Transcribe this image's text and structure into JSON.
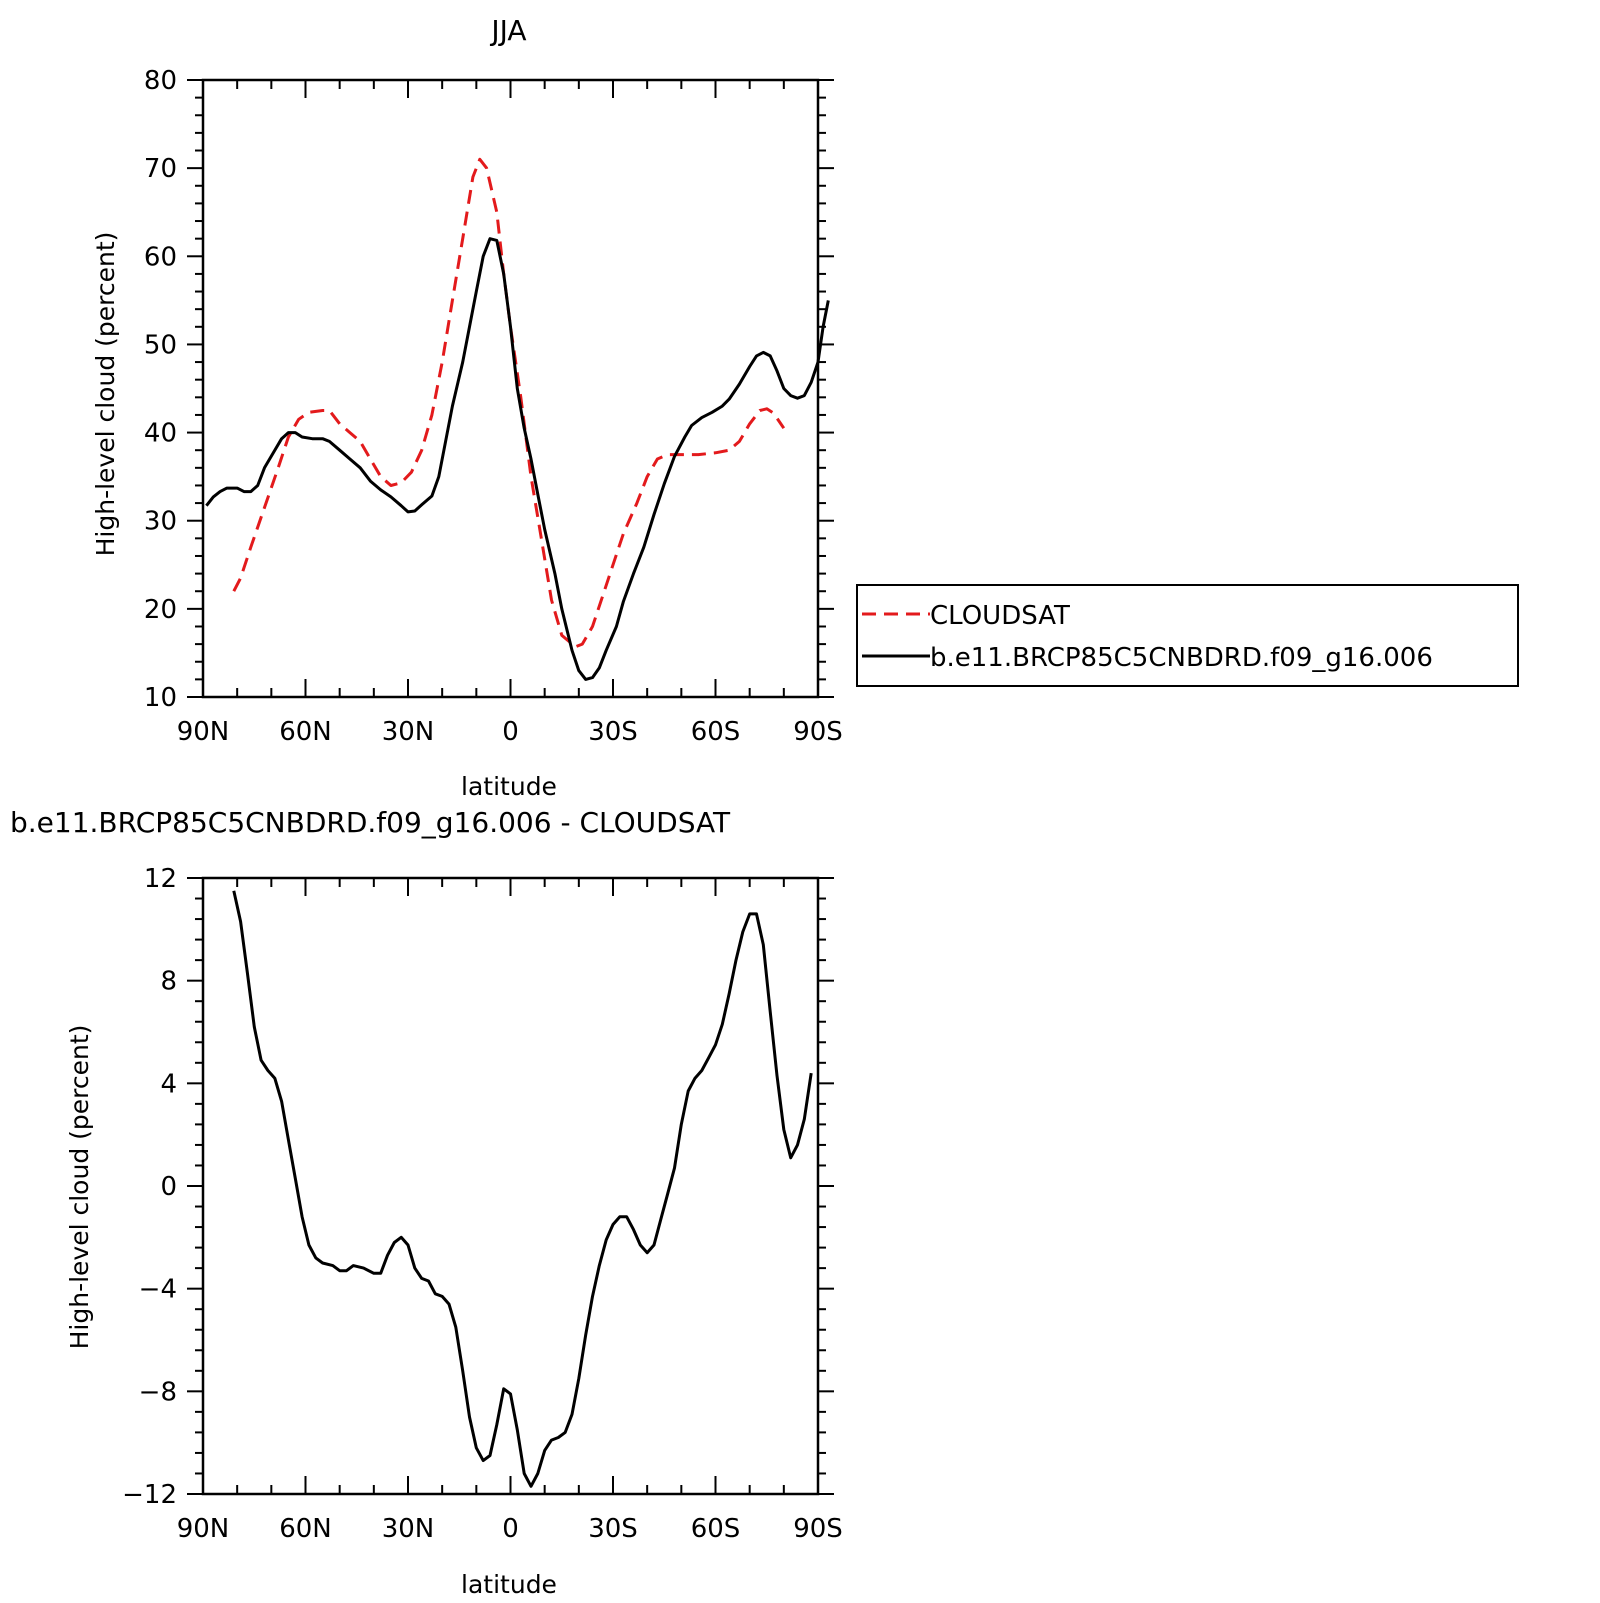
{
  "chart_data": [
    {
      "type": "line",
      "title": "JJA",
      "xlabel": "latitude",
      "ylabel": "High-level cloud (percent)",
      "xlim": [
        90,
        -90
      ],
      "ylim": [
        10,
        80
      ],
      "x_tick_values": [
        90,
        60,
        30,
        0,
        -30,
        -60,
        -90
      ],
      "x_tick_labels": [
        "90N",
        "60N",
        "30N",
        "0",
        "30S",
        "60S",
        "90S"
      ],
      "y_tick_values": [
        10,
        20,
        30,
        40,
        50,
        60,
        70,
        80
      ],
      "y_tick_labels": [
        "10",
        "20",
        "30",
        "40",
        "50",
        "60",
        "70",
        "80"
      ],
      "legend_position": "right",
      "series": [
        {
          "name": "CLOUDSAT",
          "color": "#e31a1c",
          "dash": "dashed",
          "points": [
            [
              81,
              22
            ],
            [
              79,
              23.5
            ],
            [
              76,
              27
            ],
            [
              72,
              31.5
            ],
            [
              68,
              36
            ],
            [
              65,
              39.5
            ],
            [
              62,
              41.5
            ],
            [
              59,
              42.3
            ],
            [
              55,
              42.5
            ],
            [
              53,
              42.5
            ],
            [
              50,
              41
            ],
            [
              47,
              40
            ],
            [
              44,
              39
            ],
            [
              41,
              37
            ],
            [
              38,
              35
            ],
            [
              35,
              34
            ],
            [
              32,
              34.3
            ],
            [
              29,
              35.5
            ],
            [
              26,
              38
            ],
            [
              23,
              42
            ],
            [
              20,
              48
            ],
            [
              17,
              55
            ],
            [
              14,
              62
            ],
            [
              11,
              69
            ],
            [
              9,
              71
            ],
            [
              7,
              70
            ],
            [
              4,
              65
            ],
            [
              2,
              58
            ],
            [
              0,
              52
            ],
            [
              -3,
              44
            ],
            [
              -6,
              35
            ],
            [
              -9,
              28
            ],
            [
              -12,
              21
            ],
            [
              -15,
              17
            ],
            [
              -19,
              15.7
            ],
            [
              -21,
              16
            ],
            [
              -24,
              18
            ],
            [
              -27,
              21.5
            ],
            [
              -30,
              25
            ],
            [
              -33,
              28.5
            ],
            [
              -37,
              32
            ],
            [
              -40,
              35
            ],
            [
              -43,
              37
            ],
            [
              -46,
              37.5
            ],
            [
              -50,
              37.5
            ],
            [
              -55,
              37.5
            ],
            [
              -60,
              37.7
            ],
            [
              -64,
              38
            ],
            [
              -67,
              39
            ],
            [
              -70,
              41
            ],
            [
              -73,
              42.5
            ],
            [
              -75,
              42.7
            ],
            [
              -77,
              42.2
            ],
            [
              -80,
              40.5
            ]
          ]
        },
        {
          "name": "b.e11.BRCP85C5CNBDRD.f09_g16.006",
          "color": "#000000",
          "dash": "solid",
          "points": [
            [
              89,
              31.7
            ],
            [
              87,
              32.7
            ],
            [
              85,
              33.3
            ],
            [
              83,
              33.7
            ],
            [
              80,
              33.7
            ],
            [
              78,
              33.3
            ],
            [
              76,
              33.3
            ],
            [
              74,
              34
            ],
            [
              72,
              36
            ],
            [
              69,
              38
            ],
            [
              67,
              39.3
            ],
            [
              65,
              40
            ],
            [
              63,
              40
            ],
            [
              61,
              39.5
            ],
            [
              58,
              39.3
            ],
            [
              55,
              39.3
            ],
            [
              53,
              39
            ],
            [
              50,
              38
            ],
            [
              47,
              37
            ],
            [
              44,
              36
            ],
            [
              41,
              34.5
            ],
            [
              38,
              33.5
            ],
            [
              35,
              32.7
            ],
            [
              32,
              31.7
            ],
            [
              30,
              31
            ],
            [
              28,
              31.1
            ],
            [
              26,
              31.8
            ],
            [
              23,
              32.8
            ],
            [
              21,
              35
            ],
            [
              19,
              39
            ],
            [
              17,
              43
            ],
            [
              14,
              48
            ],
            [
              12,
              52
            ],
            [
              10,
              56
            ],
            [
              8,
              60
            ],
            [
              6,
              62
            ],
            [
              4,
              61.8
            ],
            [
              2,
              58
            ],
            [
              0,
              52
            ],
            [
              -2,
              45
            ],
            [
              -4,
              40.5
            ],
            [
              -6,
              37
            ],
            [
              -8,
              33
            ],
            [
              -10,
              29
            ],
            [
              -13,
              24
            ],
            [
              -15,
              20
            ],
            [
              -18,
              15.3
            ],
            [
              -20,
              13
            ],
            [
              -22,
              12
            ],
            [
              -24,
              12.2
            ],
            [
              -26,
              13.3
            ],
            [
              -28,
              15.3
            ],
            [
              -31,
              18
            ],
            [
              -33,
              20.8
            ],
            [
              -36,
              24
            ],
            [
              -39,
              27
            ],
            [
              -42,
              30.7
            ],
            [
              -45,
              34.2
            ],
            [
              -48,
              37.3
            ],
            [
              -51,
              39.5
            ],
            [
              -53,
              40.8
            ],
            [
              -56,
              41.7
            ],
            [
              -59,
              42.3
            ],
            [
              -62,
              43
            ],
            [
              -64,
              43.8
            ],
            [
              -67,
              45.5
            ],
            [
              -70,
              47.5
            ],
            [
              -72,
              48.7
            ],
            [
              -74,
              49.1
            ],
            [
              -76,
              48.7
            ],
            [
              -78,
              47
            ],
            [
              -80,
              45
            ],
            [
              -82,
              44.2
            ],
            [
              -84,
              43.9
            ],
            [
              -86,
              44.2
            ],
            [
              -88,
              45.7
            ],
            [
              -90,
              48
            ],
            [
              -91.5,
              52
            ],
            [
              -93,
              55
            ]
          ]
        }
      ]
    },
    {
      "type": "line",
      "title": "b.e11.BRCP85C5CNBDRD.f09_g16.006 - CLOUDSAT",
      "xlabel": "latitude",
      "ylabel": "High-level cloud (percent)",
      "xlim": [
        90,
        -90
      ],
      "ylim": [
        -12,
        12
      ],
      "x_tick_values": [
        90,
        60,
        30,
        0,
        -30,
        -60,
        -90
      ],
      "x_tick_labels": [
        "90N",
        "60N",
        "30N",
        "0",
        "30S",
        "60S",
        "90S"
      ],
      "y_tick_values": [
        -12,
        -8,
        -4,
        0,
        4,
        8,
        12
      ],
      "y_tick_labels": [
        "−12",
        "−8",
        "−4",
        "0",
        "4",
        "8",
        "12"
      ],
      "series": [
        {
          "color": "#000000",
          "dash": "solid",
          "points": [
            [
              81,
              11.5
            ],
            [
              79,
              10.3
            ],
            [
              77,
              8.3
            ],
            [
              75,
              6.2
            ],
            [
              73,
              4.9
            ],
            [
              71,
              4.5
            ],
            [
              69,
              4.2
            ],
            [
              67,
              3.3
            ],
            [
              65,
              1.8
            ],
            [
              63,
              0.3
            ],
            [
              61,
              -1.2
            ],
            [
              59,
              -2.3
            ],
            [
              57,
              -2.8
            ],
            [
              55,
              -3
            ],
            [
              52,
              -3.1
            ],
            [
              50,
              -3.3
            ],
            [
              48,
              -3.3
            ],
            [
              46,
              -3.1
            ],
            [
              43,
              -3.2
            ],
            [
              40,
              -3.4
            ],
            [
              38,
              -3.4
            ],
            [
              36,
              -2.7
            ],
            [
              34,
              -2.2
            ],
            [
              32,
              -2.0
            ],
            [
              30,
              -2.3
            ],
            [
              28,
              -3.2
            ],
            [
              26,
              -3.6
            ],
            [
              24,
              -3.7
            ],
            [
              22,
              -4.2
            ],
            [
              20,
              -4.3
            ],
            [
              18,
              -4.6
            ],
            [
              16,
              -5.5
            ],
            [
              14,
              -7.2
            ],
            [
              12,
              -9
            ],
            [
              10,
              -10.2
            ],
            [
              8,
              -10.7
            ],
            [
              6,
              -10.5
            ],
            [
              4,
              -9.3
            ],
            [
              2,
              -7.9
            ],
            [
              0,
              -8.1
            ],
            [
              -2,
              -9.5
            ],
            [
              -4,
              -11.2
            ],
            [
              -6,
              -11.7
            ],
            [
              -8,
              -11.2
            ],
            [
              -10,
              -10.3
            ],
            [
              -12,
              -9.9
            ],
            [
              -14,
              -9.8
            ],
            [
              -16,
              -9.6
            ],
            [
              -18,
              -8.9
            ],
            [
              -20,
              -7.5
            ],
            [
              -22,
              -5.8
            ],
            [
              -24,
              -4.3
            ],
            [
              -26,
              -3.1
            ],
            [
              -28,
              -2.1
            ],
            [
              -30,
              -1.5
            ],
            [
              -32,
              -1.2
            ],
            [
              -34,
              -1.2
            ],
            [
              -36,
              -1.7
            ],
            [
              -38,
              -2.3
            ],
            [
              -40,
              -2.6
            ],
            [
              -42,
              -2.3
            ],
            [
              -44,
              -1.3
            ],
            [
              -46,
              -0.3
            ],
            [
              -48,
              0.7
            ],
            [
              -50,
              2.4
            ],
            [
              -52,
              3.7
            ],
            [
              -54,
              4.2
            ],
            [
              -56,
              4.5
            ],
            [
              -58,
              5
            ],
            [
              -60,
              5.5
            ],
            [
              -62,
              6.3
            ],
            [
              -64,
              7.5
            ],
            [
              -66,
              8.8
            ],
            [
              -68,
              9.9
            ],
            [
              -70,
              10.6
            ],
            [
              -72,
              10.6
            ],
            [
              -74,
              9.4
            ],
            [
              -76,
              6.8
            ],
            [
              -78,
              4.3
            ],
            [
              -80,
              2.2
            ],
            [
              -82,
              1.1
            ],
            [
              -84,
              1.6
            ],
            [
              -86,
              2.6
            ],
            [
              -88,
              4.4
            ]
          ]
        }
      ]
    }
  ]
}
